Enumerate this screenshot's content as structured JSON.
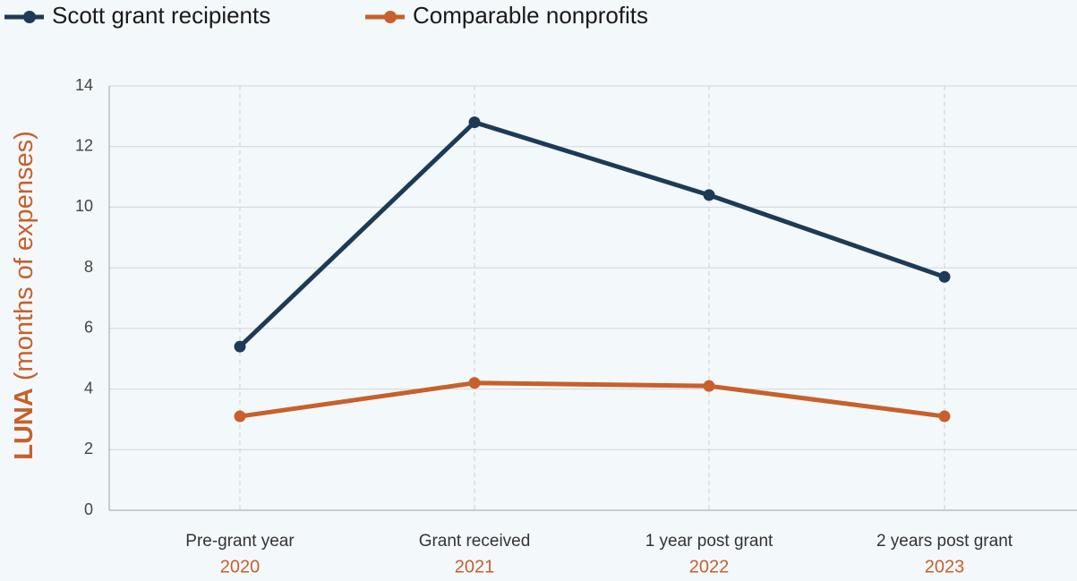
{
  "chart_data": {
    "type": "line",
    "y_label_emphasis": "LUNA",
    "y_label": "(months of expenses)",
    "categories": [
      "Pre-grant year",
      "Grant received",
      "1 year post grant",
      "2 years post grant"
    ],
    "category_years": [
      "2020",
      "2021",
      "2022",
      "2023"
    ],
    "series": [
      {
        "name": "Scott grant recipients",
        "color": "#1d3a57",
        "values": [
          5.4,
          12.8,
          10.4,
          7.7
        ]
      },
      {
        "name": "Comparable nonprofits",
        "color": "#c8602b",
        "values": [
          3.1,
          4.2,
          4.1,
          3.1
        ]
      }
    ],
    "ylim": [
      0,
      14
    ],
    "yticks": [
      0,
      2,
      4,
      6,
      8,
      10,
      12,
      14
    ],
    "grid": true,
    "legend": "top-left"
  }
}
